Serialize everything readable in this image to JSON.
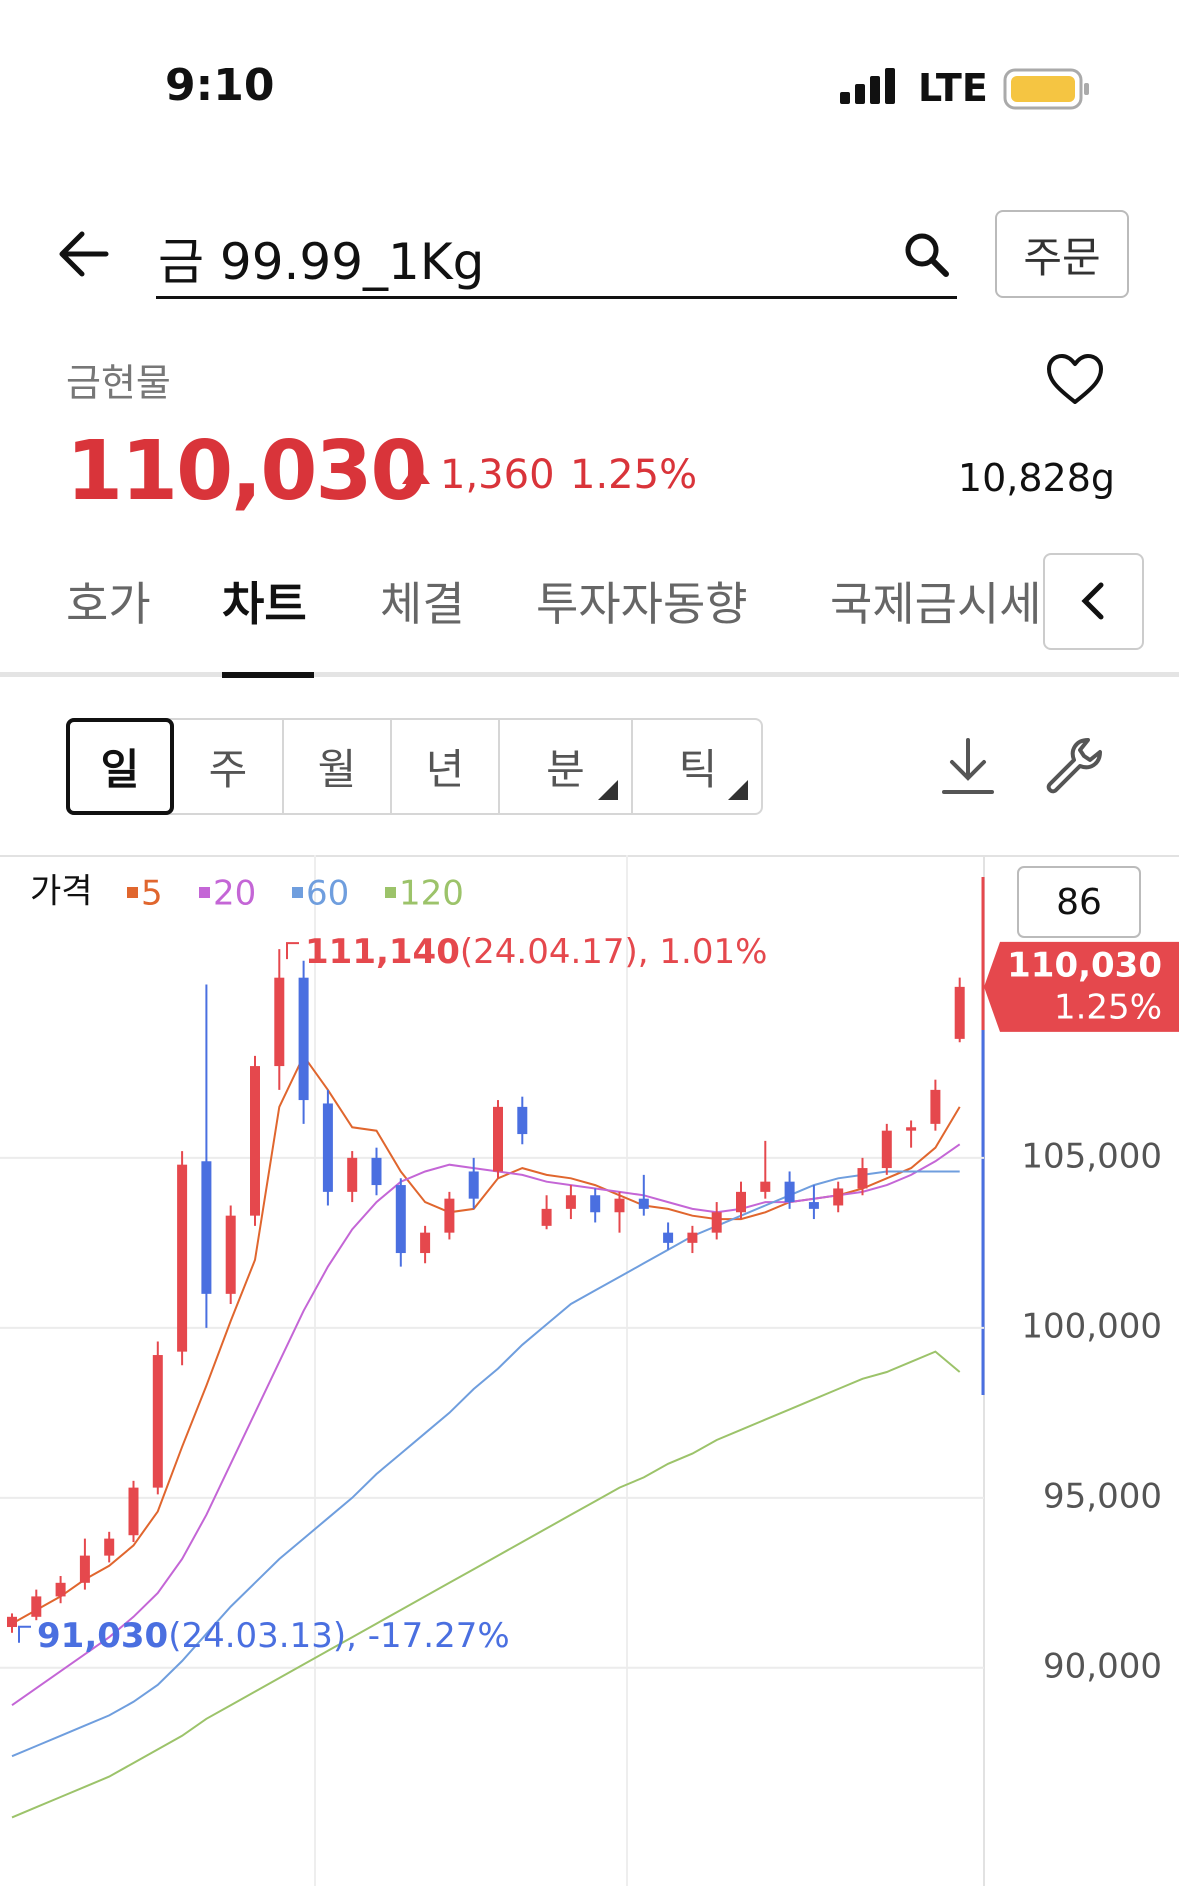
{
  "status_bar": {
    "time": "9:10",
    "network": "LTE"
  },
  "header": {
    "title": "금 99.99_1Kg",
    "order_button": "주문"
  },
  "quote": {
    "category": "금현물",
    "price": "110,030",
    "change": "1,360",
    "change_rate": "1.25%",
    "volume": "10,828g"
  },
  "tabs": [
    "호가",
    "차트",
    "체결",
    "투자자동향",
    "국제금시세"
  ],
  "periods": [
    "일",
    "주",
    "월",
    "년",
    "분",
    "틱"
  ],
  "chart_data": {
    "type": "candlestick",
    "legend_title": "가격",
    "up_color": "#e5484d",
    "down_color": "#4a6fe0",
    "grid": true,
    "ylim": [
      83670,
      113850
    ],
    "yticks": [
      {
        "value": 90000,
        "label": "90,000"
      },
      {
        "value": 95000,
        "label": "95,000"
      },
      {
        "value": 100000,
        "label": "100,000"
      },
      {
        "value": 105000,
        "label": "105,000"
      }
    ],
    "indicator_box": "86",
    "price_tag": {
      "value": 110030,
      "label": "110,030",
      "change": "1.25%"
    },
    "max_label": {
      "value": 111140,
      "label": "111,140",
      "detail": "(24.04.17), 1.01%"
    },
    "min_label": {
      "value": 91030,
      "label": "91,030",
      "detail": "(24.03.13), -17.27%"
    },
    "candles": [
      {
        "open": 91200,
        "high": 91600,
        "low": 91030,
        "close": 91500
      },
      {
        "open": 91500,
        "high": 92300,
        "low": 91400,
        "close": 92100
      },
      {
        "open": 92100,
        "high": 92700,
        "low": 91900,
        "close": 92500
      },
      {
        "open": 92500,
        "high": 93800,
        "low": 92300,
        "close": 93300
      },
      {
        "open": 93300,
        "high": 94000,
        "low": 93100,
        "close": 93800
      },
      {
        "open": 93900,
        "high": 95500,
        "low": 93700,
        "close": 95300
      },
      {
        "open": 95300,
        "high": 99600,
        "low": 95100,
        "close": 99200
      },
      {
        "open": 99300,
        "high": 105200,
        "low": 98900,
        "close": 104800
      },
      {
        "open": 104900,
        "high": 110100,
        "low": 100000,
        "close": 101000
      },
      {
        "open": 101000,
        "high": 103600,
        "low": 100700,
        "close": 103300
      },
      {
        "open": 103300,
        "high": 108000,
        "low": 103000,
        "close": 107700
      },
      {
        "open": 107700,
        "high": 111140,
        "low": 107000,
        "close": 110300
      },
      {
        "open": 110300,
        "high": 110800,
        "low": 106000,
        "close": 106700
      },
      {
        "open": 106600,
        "high": 107000,
        "low": 103600,
        "close": 104000
      },
      {
        "open": 104000,
        "high": 105200,
        "low": 103700,
        "close": 105000
      },
      {
        "open": 105000,
        "high": 105300,
        "low": 103900,
        "close": 104200
      },
      {
        "open": 104200,
        "high": 104400,
        "low": 101800,
        "close": 102200
      },
      {
        "open": 102200,
        "high": 103000,
        "low": 101900,
        "close": 102800
      },
      {
        "open": 102800,
        "high": 104000,
        "low": 102600,
        "close": 103800
      },
      {
        "open": 104600,
        "high": 105000,
        "low": 103500,
        "close": 103800
      },
      {
        "open": 104600,
        "high": 106700,
        "low": 104400,
        "close": 106500
      },
      {
        "open": 106500,
        "high": 106800,
        "low": 105400,
        "close": 105700
      },
      {
        "open": 103000,
        "high": 103900,
        "low": 102900,
        "close": 103500
      },
      {
        "open": 103500,
        "high": 104200,
        "low": 103200,
        "close": 103900
      },
      {
        "open": 103900,
        "high": 104100,
        "low": 103100,
        "close": 103400
      },
      {
        "open": 103400,
        "high": 104000,
        "low": 102800,
        "close": 103800
      },
      {
        "open": 103800,
        "high": 104500,
        "low": 103300,
        "close": 103500
      },
      {
        "open": 102800,
        "high": 103100,
        "low": 102300,
        "close": 102500
      },
      {
        "open": 102500,
        "high": 103000,
        "low": 102200,
        "close": 102800
      },
      {
        "open": 102800,
        "high": 103700,
        "low": 102600,
        "close": 103400
      },
      {
        "open": 103400,
        "high": 104300,
        "low": 103200,
        "close": 104000
      },
      {
        "open": 104000,
        "high": 105500,
        "low": 103800,
        "close": 104300
      },
      {
        "open": 104300,
        "high": 104600,
        "low": 103500,
        "close": 103700
      },
      {
        "open": 103700,
        "high": 104200,
        "low": 103200,
        "close": 103500
      },
      {
        "open": 103600,
        "high": 104300,
        "low": 103400,
        "close": 104100
      },
      {
        "open": 104100,
        "high": 105000,
        "low": 103900,
        "close": 104700
      },
      {
        "open": 104700,
        "high": 106000,
        "low": 104500,
        "close": 105800
      },
      {
        "open": 105800,
        "high": 106100,
        "low": 105300,
        "close": 105900
      },
      {
        "open": 106000,
        "high": 107300,
        "low": 105800,
        "close": 107000
      },
      {
        "open": 108500,
        "high": 110300,
        "low": 108400,
        "close": 110030
      }
    ],
    "series": [
      {
        "name": "5",
        "color": "#e0662e",
        "values": [
          91300,
          91700,
          92100,
          92600,
          93000,
          93600,
          94600,
          96500,
          98300,
          100200,
          102000,
          106500,
          108000,
          107000,
          105900,
          105800,
          104600,
          103700,
          103400,
          103500,
          104400,
          104700,
          104500,
          104400,
          104200,
          103900,
          103600,
          103500,
          103300,
          103200,
          103200,
          103400,
          103700,
          103800,
          103900,
          104100,
          104400,
          104700,
          105300,
          106500
        ]
      },
      {
        "name": "20",
        "color": "#c466d6",
        "values": [
          88900,
          89400,
          89900,
          90400,
          90900,
          91500,
          92200,
          93200,
          94500,
          96000,
          97500,
          99000,
          100500,
          101800,
          102900,
          103700,
          104300,
          104600,
          104800,
          104700,
          104600,
          104500,
          104300,
          104200,
          104100,
          104000,
          103900,
          103700,
          103500,
          103400,
          103500,
          103700,
          103700,
          103800,
          103900,
          104000,
          104200,
          104500,
          104900,
          105400
        ]
      },
      {
        "name": "60",
        "color": "#6f9ede",
        "values": [
          87400,
          87700,
          88000,
          88300,
          88600,
          89000,
          89500,
          90200,
          91000,
          91800,
          92500,
          93200,
          93800,
          94400,
          95000,
          95700,
          96300,
          96900,
          97500,
          98200,
          98800,
          99500,
          100100,
          100700,
          101100,
          101500,
          101900,
          102300,
          102700,
          103000,
          103300,
          103600,
          103900,
          104200,
          104400,
          104500,
          104600,
          104600,
          104600,
          104600
        ]
      },
      {
        "name": "120",
        "color": "#9cc36a",
        "values": [
          85600,
          85900,
          86200,
          86500,
          86800,
          87200,
          87600,
          88000,
          88500,
          88900,
          89300,
          89700,
          90100,
          90500,
          90900,
          91300,
          91700,
          92100,
          92500,
          92900,
          93300,
          93700,
          94100,
          94500,
          94900,
          95300,
          95600,
          96000,
          96300,
          96700,
          97000,
          97300,
          97600,
          97900,
          98200,
          98500,
          98700,
          99000,
          99300,
          98700
        ]
      }
    ]
  }
}
